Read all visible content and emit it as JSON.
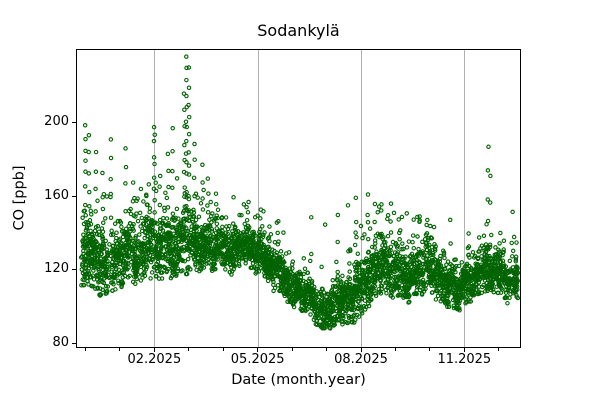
{
  "window": {
    "background": "#ffffff",
    "text_color": "#000000"
  },
  "chart_data": {
    "type": "scatter",
    "title": "Sodankylä",
    "xlabel": "Date (month.year)",
    "ylabel": "CO [ppb]",
    "series_name": "CO concentration time series (dense sub-daily measurements)",
    "marker": {
      "shape": "open-circle",
      "color": "#006400",
      "radius_px": 1.7,
      "stroke_px": 1.1
    },
    "grid": {
      "axis": "x",
      "color": "#b0b0b0",
      "on": true
    },
    "spine_color": "#000000",
    "x_epoch": "months since 2024-12-01",
    "xlim_months": [
      -0.246,
      12.616
    ],
    "ylim": [
      78,
      239.6
    ],
    "u_range": [
      -0.13,
      12.53
    ],
    "value_min": 84,
    "value_max": 235,
    "points_per_day": 10,
    "seed": 7,
    "x_major_ticks": [
      {
        "u": 2,
        "label": "02.2025"
      },
      {
        "u": 5,
        "label": "05.2025"
      },
      {
        "u": 8,
        "label": "08.2025"
      },
      {
        "u": 11,
        "label": "11.2025"
      }
    ],
    "x_minor_ticks": [
      0,
      1,
      3,
      4,
      6,
      7,
      9,
      10,
      12
    ],
    "y_ticks": [
      {
        "v": 80,
        "label": "80"
      },
      {
        "v": 120,
        "label": "120"
      },
      {
        "v": 160,
        "label": "160"
      },
      {
        "v": 200,
        "label": "200"
      }
    ],
    "band_keyframes": [
      [
        -0.15,
        130,
        16
      ],
      [
        0.33,
        126,
        15
      ],
      [
        0.82,
        124,
        14
      ],
      [
        1.48,
        127,
        15
      ],
      [
        2.0,
        133,
        15
      ],
      [
        2.6,
        137,
        14
      ],
      [
        3.1,
        140,
        12
      ],
      [
        3.6,
        138,
        11
      ],
      [
        4.1,
        134,
        9
      ],
      [
        4.6,
        133,
        9
      ],
      [
        5.0,
        128,
        9
      ],
      [
        5.45,
        118,
        10
      ],
      [
        5.85,
        108,
        10
      ],
      [
        6.3,
        101,
        9
      ],
      [
        6.8,
        99,
        9
      ],
      [
        7.3,
        100,
        10
      ],
      [
        7.7,
        104,
        11
      ],
      [
        8.1,
        114,
        14
      ],
      [
        8.45,
        120,
        13
      ],
      [
        8.95,
        115,
        13
      ],
      [
        9.4,
        111,
        11
      ],
      [
        9.87,
        116,
        12
      ],
      [
        10.33,
        112,
        11
      ],
      [
        10.85,
        106,
        10
      ],
      [
        11.38,
        111,
        10
      ],
      [
        11.84,
        114,
        10
      ],
      [
        12.3,
        116,
        10
      ],
      [
        12.55,
        114,
        10
      ]
    ],
    "spikes": [
      [
        0.0,
        200,
        10
      ],
      [
        0.1,
        193,
        7
      ],
      [
        0.3,
        186,
        6
      ],
      [
        0.5,
        172,
        5
      ],
      [
        0.74,
        191,
        7
      ],
      [
        1.17,
        187,
        6
      ],
      [
        1.38,
        166,
        4
      ],
      [
        1.6,
        163,
        4
      ],
      [
        2.0,
        200,
        11
      ],
      [
        2.16,
        171,
        5
      ],
      [
        2.4,
        184,
        5
      ],
      [
        2.53,
        196,
        6
      ],
      [
        2.87,
        218,
        9
      ],
      [
        2.93,
        235,
        15
      ],
      [
        3.0,
        228,
        11
      ],
      [
        3.16,
        187,
        6
      ],
      [
        3.4,
        175,
        5
      ],
      [
        3.56,
        171,
        4
      ],
      [
        3.8,
        163,
        4
      ],
      [
        4.3,
        158,
        3
      ],
      [
        4.73,
        156,
        4
      ],
      [
        5.16,
        152,
        3
      ],
      [
        5.6,
        148,
        3
      ],
      [
        6.56,
        150,
        3
      ],
      [
        6.96,
        147,
        2
      ],
      [
        7.33,
        152,
        4
      ],
      [
        7.63,
        155,
        3
      ],
      [
        7.86,
        158,
        5
      ],
      [
        8.2,
        160,
        6
      ],
      [
        8.4,
        158,
        4
      ],
      [
        8.6,
        155,
        3
      ],
      [
        8.86,
        157,
        5
      ],
      [
        9.33,
        149,
        3
      ],
      [
        9.63,
        151,
        4
      ],
      [
        9.93,
        146,
        2
      ],
      [
        10.13,
        145,
        3
      ],
      [
        10.6,
        148,
        4
      ],
      [
        11.12,
        139,
        2
      ],
      [
        11.58,
        141,
        3
      ],
      [
        11.69,
        186,
        6
      ],
      [
        11.75,
        173,
        4
      ],
      [
        12.4,
        150,
        2
      ]
    ]
  }
}
